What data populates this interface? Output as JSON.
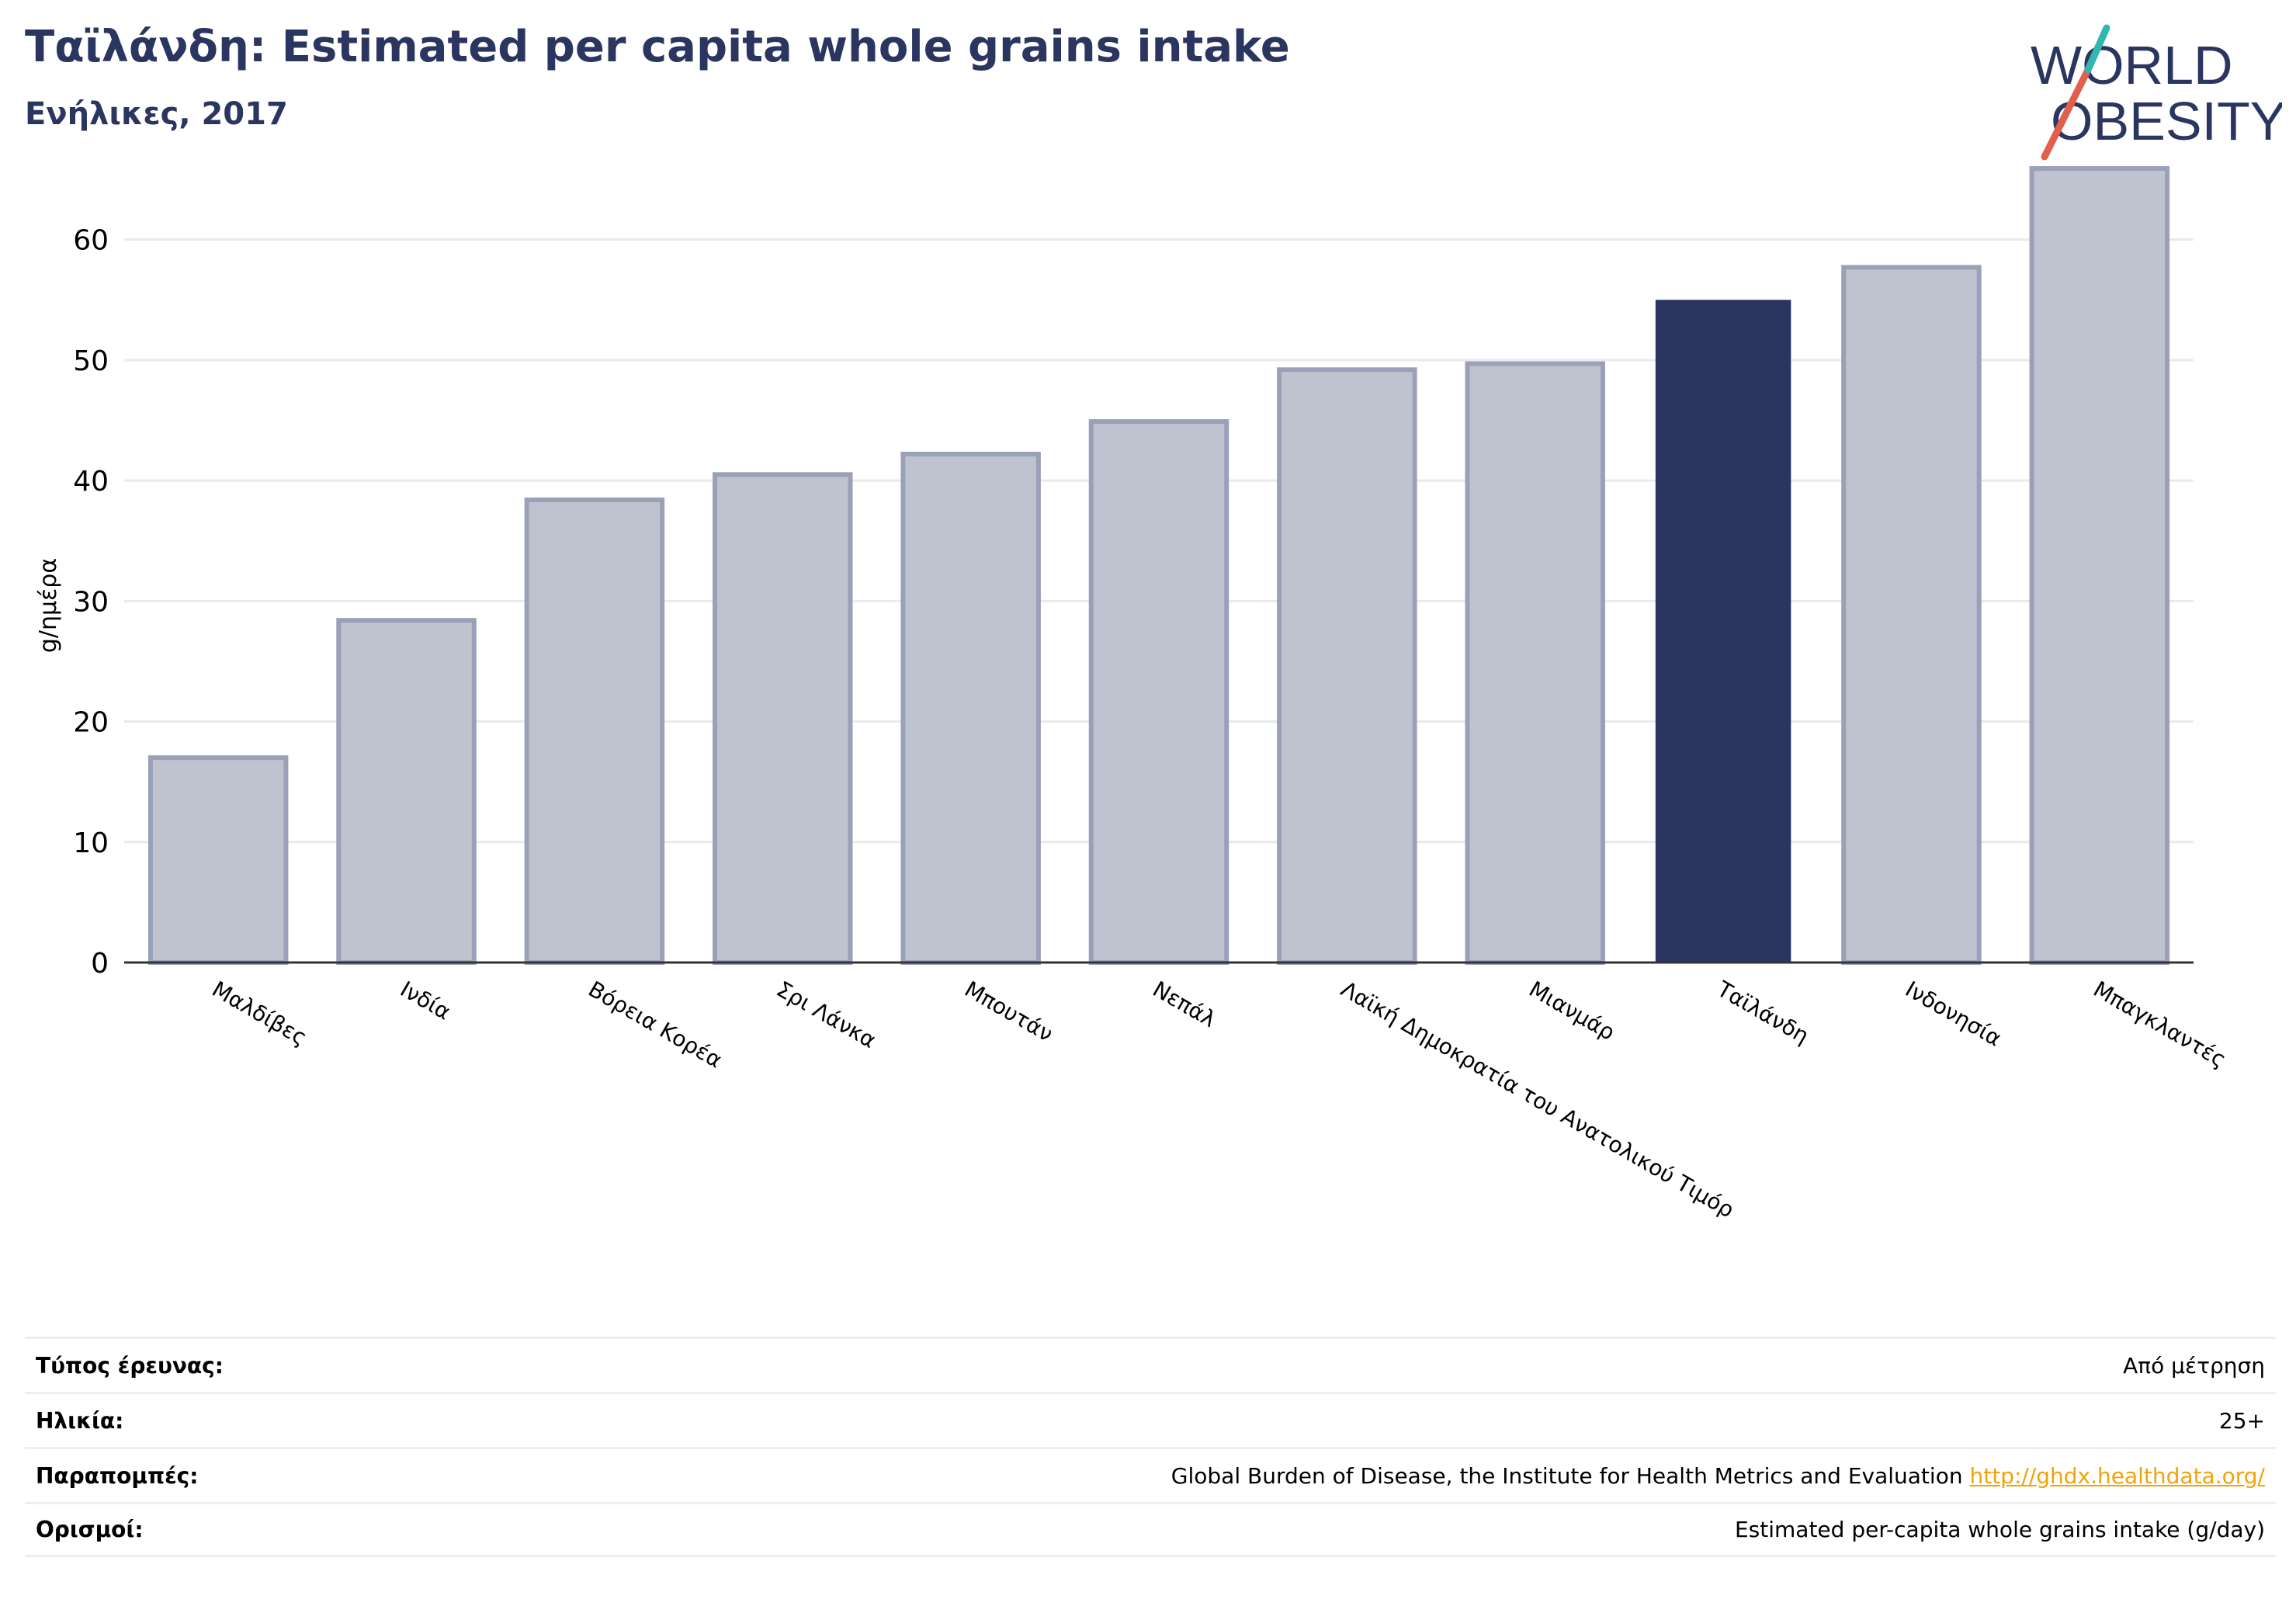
{
  "header": {
    "title": "Ταϊλάνδη: Estimated per capita whole grains intake",
    "subtitle": "Ενήλικες, 2017"
  },
  "logo": {
    "line1": "WORLD",
    "line2": "OBESITY",
    "colors": {
      "text": "#2a3560",
      "slash_red": "#e0604b",
      "slash_teal": "#33b5b0"
    }
  },
  "chart_data": {
    "type": "bar",
    "title": "Ταϊλάνδη: Estimated per capita whole grains intake",
    "subtitle": "Ενήλικες, 2017",
    "ylabel": "g/ημέρα",
    "xlabel": "",
    "ylim": [
      0,
      67
    ],
    "yticks": [
      0,
      10,
      20,
      30,
      40,
      50,
      60
    ],
    "grid": true,
    "categories": [
      "Μαλδίβες",
      "Ινδία",
      "Βόρεια Κορέα",
      "Σρι Λάνκα",
      "Μπουτάν",
      "Νεπάλ",
      "Λαϊκή Δημοκρατία του Ανατολικού Τιμόρ",
      "Μιανμάρ",
      "Ταϊλάνδη",
      "Ινδονησία",
      "Μπαγκλαντές"
    ],
    "values": [
      17.0,
      28.4,
      38.4,
      40.5,
      42.2,
      44.9,
      49.2,
      49.7,
      55.0,
      57.7,
      65.9
    ],
    "highlight": "Ταϊλάνδη",
    "colors": {
      "bar": "#bfc3cf",
      "bar_edge": "#9aa0b8",
      "highlight": "#2a3560",
      "axis": "#333333",
      "grid": "#e8eaee"
    }
  },
  "info": {
    "rows": [
      {
        "key": "Τύπος έρευνας:",
        "value": "Από μέτρηση",
        "link": ""
      },
      {
        "key": "Ηλικία:",
        "value": "25+",
        "link": ""
      },
      {
        "key": "Παραπομπές:",
        "value": "Global Burden of Disease, the Institute for Health Metrics and Evaluation",
        "link": "http://ghdx.healthdata.org/"
      },
      {
        "key": "Ορισμοί:",
        "value": "Estimated per-capita whole grains intake (g/day)",
        "link": ""
      }
    ]
  }
}
